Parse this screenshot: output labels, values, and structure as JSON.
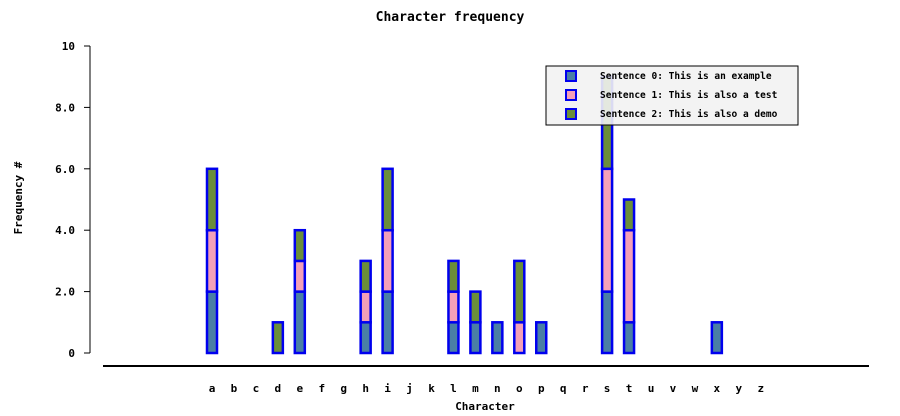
{
  "chart_data": {
    "type": "bar",
    "stacked": true,
    "title": "Character frequency",
    "xlabel": "Character",
    "ylabel": "Frequency #",
    "ylim": [
      0,
      10
    ],
    "yticks": [
      {
        "value": 0,
        "label": "0"
      },
      {
        "value": 2,
        "label": "2.0"
      },
      {
        "value": 4,
        "label": "4.0"
      },
      {
        "value": 6,
        "label": "6.0"
      },
      {
        "value": 8,
        "label": "8.0"
      },
      {
        "value": 10,
        "label": "10"
      }
    ],
    "categories": [
      "a",
      "b",
      "c",
      "d",
      "e",
      "f",
      "g",
      "h",
      "i",
      "j",
      "k",
      "l",
      "m",
      "n",
      "o",
      "p",
      "q",
      "r",
      "s",
      "t",
      "u",
      "v",
      "w",
      "x",
      "y",
      "z"
    ],
    "series": [
      {
        "name": "Sentence 0: This is an example",
        "color": "#4a7fa5",
        "values": [
          2,
          0,
          0,
          0,
          2,
          0,
          0,
          1,
          2,
          0,
          0,
          1,
          1,
          1,
          0,
          1,
          0,
          0,
          2,
          1,
          0,
          0,
          0,
          1,
          0,
          0
        ]
      },
      {
        "name": "Sentence 1:  This is also a test",
        "color": "#f4a0b8",
        "values": [
          2,
          0,
          0,
          0,
          1,
          0,
          0,
          1,
          2,
          0,
          0,
          1,
          0,
          0,
          1,
          0,
          0,
          0,
          4,
          3,
          0,
          0,
          0,
          0,
          0,
          0
        ]
      },
      {
        "name": "Sentence 2:  This is also a demo",
        "color": "#6b8e3a",
        "values": [
          2,
          0,
          0,
          1,
          1,
          0,
          0,
          1,
          2,
          0,
          0,
          1,
          1,
          0,
          2,
          0,
          0,
          0,
          3,
          1,
          0,
          0,
          0,
          0,
          0,
          0
        ]
      }
    ],
    "bar_border_color": "#0000ee",
    "legend_position": "top-right",
    "grid": false
  }
}
